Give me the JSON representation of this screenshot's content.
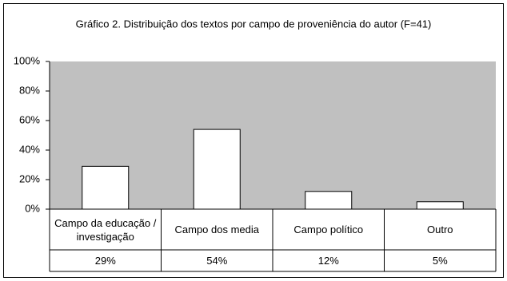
{
  "chart_data": {
    "type": "bar",
    "title": "Gráfico 2. Distribuição dos textos por campo de proveniência do autor (F=41)",
    "categories": [
      "Campo da educação / investigação",
      "Campo dos media",
      "Campo político",
      "Outro"
    ],
    "values": [
      29,
      54,
      12,
      5
    ],
    "value_labels": [
      "29%",
      "54%",
      "12%",
      "5%"
    ],
    "color": "#ffffff",
    "plot_background": "#c0c0c0",
    "ylim": [
      0,
      100
    ],
    "yticks": [
      {
        "value": 0,
        "label": "0%"
      },
      {
        "value": 20,
        "label": "20%"
      },
      {
        "value": 40,
        "label": "40%"
      },
      {
        "value": 60,
        "label": "60%"
      },
      {
        "value": 80,
        "label": "80%"
      },
      {
        "value": 100,
        "label": "100%"
      }
    ],
    "grid": false
  }
}
